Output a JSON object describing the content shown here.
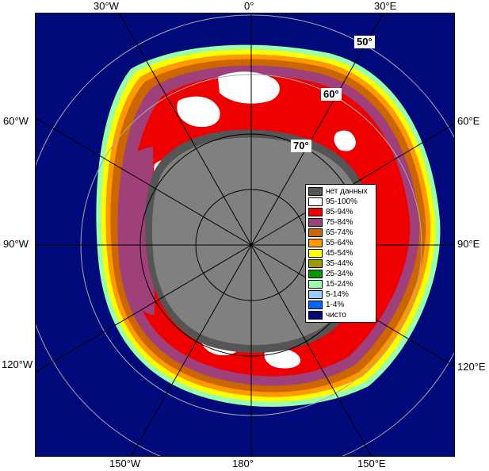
{
  "colors": {
    "ocean": "#000a7a",
    "land": "#808080",
    "nodata": "#555555",
    "grid": "#aaaaaa"
  },
  "lon_labels": [
    "30°W",
    "0°",
    "30°E",
    "60°W",
    "60°E",
    "90°W",
    "90°E",
    "120°W",
    "120°E",
    "150°W",
    "180°",
    "150°E"
  ],
  "lat_labels": [
    "50°",
    "60°",
    "70°"
  ],
  "legend": {
    "items": [
      {
        "label": "нет данных",
        "color": "#555555"
      },
      {
        "label": "95-100%",
        "color": "#ffffff"
      },
      {
        "label": "85-94%",
        "color": "#ee0000"
      },
      {
        "label": "75-84%",
        "color": "#a0407a"
      },
      {
        "label": "65-74%",
        "color": "#cc6600"
      },
      {
        "label": "55-64%",
        "color": "#ff9900"
      },
      {
        "label": "45-54%",
        "color": "#ffff00"
      },
      {
        "label": "35-44%",
        "color": "#999900"
      },
      {
        "label": "25-34%",
        "color": "#009900"
      },
      {
        "label": "15-24%",
        "color": "#99ffaa"
      },
      {
        "label": "5-14%",
        "color": "#99ccff"
      },
      {
        "label": "1-4%",
        "color": "#0066ff"
      },
      {
        "label": "чисто",
        "color": "#000a7a"
      }
    ]
  }
}
